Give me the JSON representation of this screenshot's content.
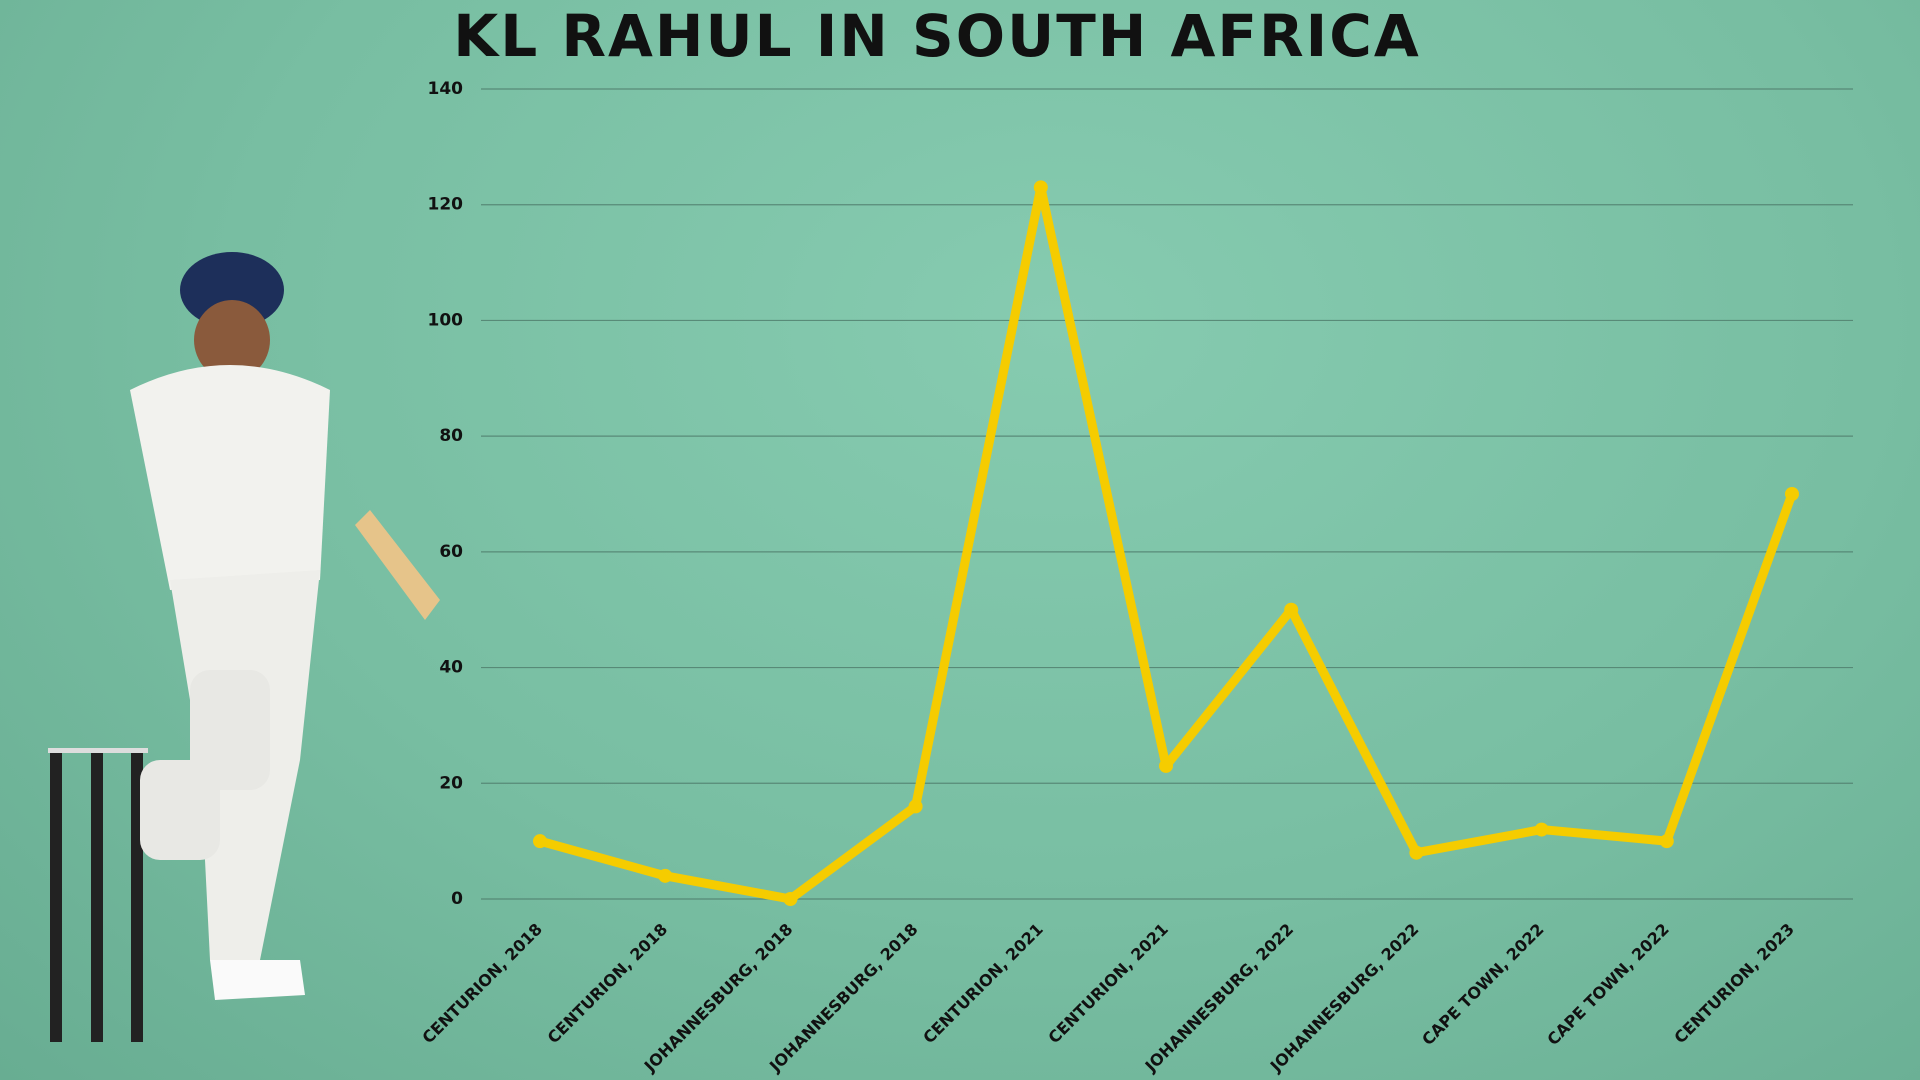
{
  "chart_data": {
    "type": "line",
    "title": "KL RAHUL IN SOUTH AFRICA",
    "categories": [
      "CENTURION, 2018",
      "CENTURION, 2018",
      "JOHANNESBURG, 2018",
      "JOHANNESBURG, 2018",
      "CENTURION, 2021",
      "CENTURION, 2021",
      "JOHANNESBURG, 2022",
      "JOHANNESBURG, 2022",
      "CAPE TOWN, 2022",
      "CAPE TOWN, 2022",
      "CENTURION, 2023"
    ],
    "values": [
      10,
      4,
      0,
      16,
      123,
      23,
      50,
      8,
      12,
      10,
      70
    ],
    "color": "#f5cc00",
    "ylim": [
      0,
      140
    ],
    "yticks": [
      0,
      20,
      40,
      60,
      80,
      100,
      120,
      140
    ],
    "grid": true
  }
}
